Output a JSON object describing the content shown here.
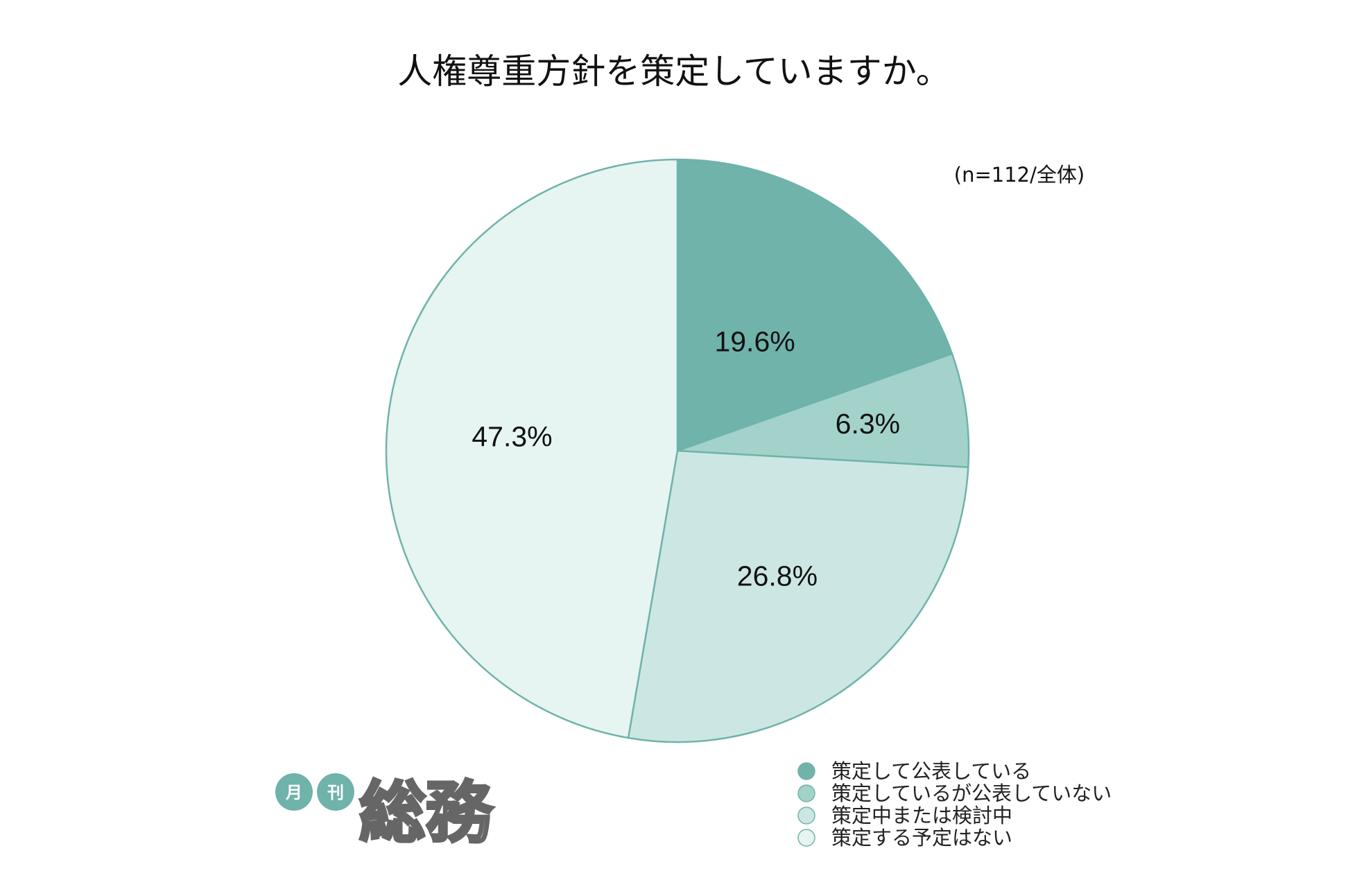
{
  "chart_data": {
    "type": "pie",
    "title": "人権尊重方針を策定していますか。",
    "note": "(n=112/全体)",
    "start": "top",
    "direction": "clockwise",
    "slices": [
      {
        "label": "策定して公表している",
        "value": 19.6,
        "display": "19.6%",
        "color": "#6fb3ab"
      },
      {
        "label": "策定しているが公表していない",
        "value": 6.3,
        "display": "6.3%",
        "color": "#a3d2cb"
      },
      {
        "label": "策定中または検討中",
        "value": 26.8,
        "display": "26.8%",
        "color": "#cce7e3"
      },
      {
        "label": "策定する予定はない",
        "value": 47.3,
        "display": "47.3%",
        "color": "#e6f4f2"
      }
    ],
    "stroke_color": "#6fb3ab",
    "legend_position": "bottom-right"
  },
  "logo": {
    "badge_1": "月",
    "badge_2": "刊",
    "wordmark": "総務",
    "badge_color": "#6fb3ab",
    "wordmark_color": "#666666"
  }
}
